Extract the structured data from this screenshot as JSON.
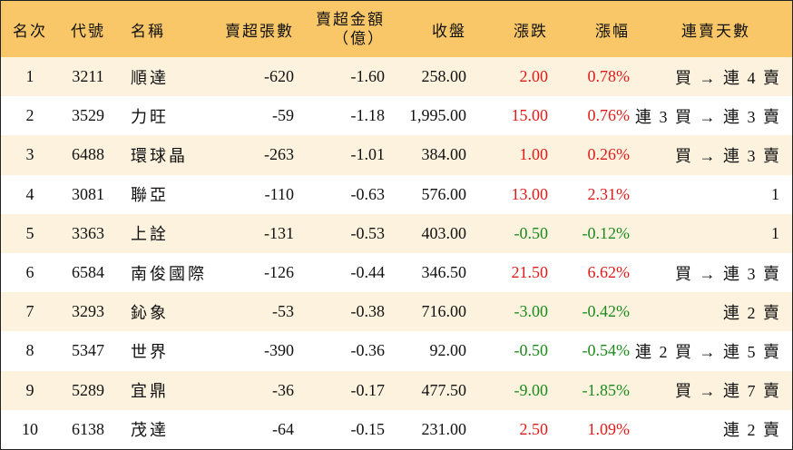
{
  "colors": {
    "header_bg": "#f9c768",
    "row_odd_bg": "#fcf2de",
    "up": "#e01b1b",
    "down": "#1d8a1d"
  },
  "headers": {
    "rank": "名次",
    "code": "代號",
    "name": "名稱",
    "sell_lots": "賣超張數",
    "sell_amount_line1": "賣超金額",
    "sell_amount_line2": "（億）",
    "close": "收盤",
    "change": "漲跌",
    "pct": "漲幅",
    "streak": "連賣天數"
  },
  "rows": [
    {
      "rank": "1",
      "code": "3211",
      "name": "順達",
      "sell_lots": "-620",
      "sell_amount": "-1.60",
      "close": "258.00",
      "change": "2.00",
      "pct": "0.78%",
      "direction": "up",
      "streak": "買 → 連 4 賣"
    },
    {
      "rank": "2",
      "code": "3529",
      "name": "力旺",
      "sell_lots": "-59",
      "sell_amount": "-1.18",
      "close": "1,995.00",
      "change": "15.00",
      "pct": "0.76%",
      "direction": "up",
      "streak": "連 3 買 → 連 3 賣"
    },
    {
      "rank": "3",
      "code": "6488",
      "name": "環球晶",
      "sell_lots": "-263",
      "sell_amount": "-1.01",
      "close": "384.00",
      "change": "1.00",
      "pct": "0.26%",
      "direction": "up",
      "streak": "買 → 連 3 賣"
    },
    {
      "rank": "4",
      "code": "3081",
      "name": "聯亞",
      "sell_lots": "-110",
      "sell_amount": "-0.63",
      "close": "576.00",
      "change": "13.00",
      "pct": "2.31%",
      "direction": "up",
      "streak": "1"
    },
    {
      "rank": "5",
      "code": "3363",
      "name": "上詮",
      "sell_lots": "-131",
      "sell_amount": "-0.53",
      "close": "403.00",
      "change": "-0.50",
      "pct": "-0.12%",
      "direction": "down",
      "streak": "1"
    },
    {
      "rank": "6",
      "code": "6584",
      "name": "南俊國際",
      "sell_lots": "-126",
      "sell_amount": "-0.44",
      "close": "346.50",
      "change": "21.50",
      "pct": "6.62%",
      "direction": "up",
      "streak": "買 → 連 3 賣"
    },
    {
      "rank": "7",
      "code": "3293",
      "name": "鈊象",
      "sell_lots": "-53",
      "sell_amount": "-0.38",
      "close": "716.00",
      "change": "-3.00",
      "pct": "-0.42%",
      "direction": "down",
      "streak": "連 2 賣"
    },
    {
      "rank": "8",
      "code": "5347",
      "name": "世界",
      "sell_lots": "-390",
      "sell_amount": "-0.36",
      "close": "92.00",
      "change": "-0.50",
      "pct": "-0.54%",
      "direction": "down",
      "streak": "連 2 買 → 連 5 賣"
    },
    {
      "rank": "9",
      "code": "5289",
      "name": "宜鼎",
      "sell_lots": "-36",
      "sell_amount": "-0.17",
      "close": "477.50",
      "change": "-9.00",
      "pct": "-1.85%",
      "direction": "down",
      "streak": "買 → 連 7 賣"
    },
    {
      "rank": "10",
      "code": "6138",
      "name": "茂達",
      "sell_lots": "-64",
      "sell_amount": "-0.15",
      "close": "231.00",
      "change": "2.50",
      "pct": "1.09%",
      "direction": "up",
      "streak": "連 2 賣"
    }
  ]
}
